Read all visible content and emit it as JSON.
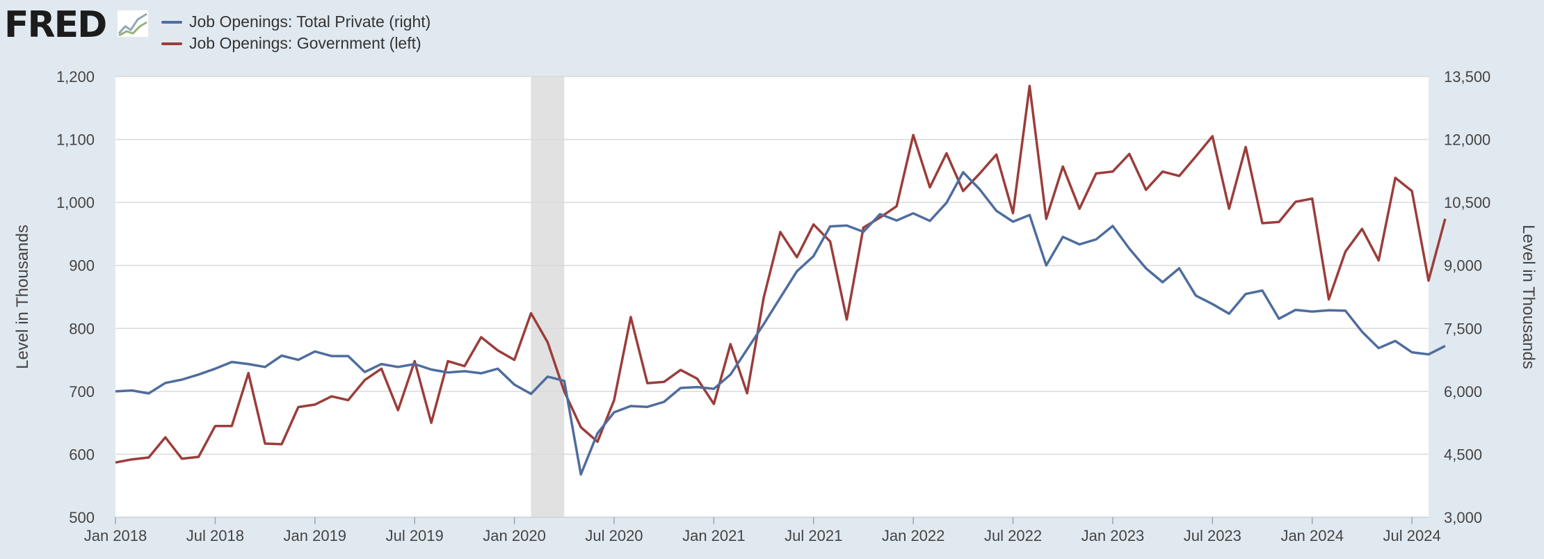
{
  "header": {
    "logo_text": "FRED",
    "logo_icon": "line-chart-icon"
  },
  "colors": {
    "private": "#4e6d9e",
    "government": "#9b3d3a",
    "recession": "#e1e1e1",
    "grid": "#d9d9d9",
    "background": "#e1e9f0"
  },
  "chart_data": {
    "type": "line",
    "grid": true,
    "legend_position": "top-left",
    "recession_band": {
      "start": "2020-02",
      "end": "2020-04"
    },
    "x_ticks": [
      "Jan 2018",
      "Jul 2018",
      "Jan 2019",
      "Jul 2019",
      "Jan 2020",
      "Jul 2020",
      "Jan 2021",
      "Jul 2021",
      "Jan 2022",
      "Jul 2022",
      "Jan 2023",
      "Jul 2023",
      "Jan 2024",
      "Jul 2024"
    ],
    "x_start": "2018-01",
    "x_end": "2024-08",
    "y_left": {
      "label": "Level in Thousands",
      "range": [
        500,
        1200
      ],
      "ticks": [
        "500",
        "600",
        "700",
        "800",
        "900",
        "1,000",
        "1,100",
        "1,200"
      ]
    },
    "y_right": {
      "label": "Level in Thousands",
      "range": [
        3000,
        13500
      ],
      "ticks": [
        "3,000",
        "4,500",
        "6,000",
        "7,500",
        "9,000",
        "10,500",
        "12,000",
        "13,500"
      ]
    },
    "series": [
      {
        "name": "Job Openings: Total Private (right)",
        "axis": "right",
        "color": "#4e6d9e",
        "values": [
          6000,
          6020,
          5950,
          6200,
          6280,
          6400,
          6540,
          6700,
          6650,
          6580,
          6850,
          6750,
          6950,
          6840,
          6840,
          6460,
          6650,
          6580,
          6650,
          6520,
          6450,
          6480,
          6430,
          6540,
          6160,
          5940,
          6350,
          6250,
          4020,
          5000,
          5500,
          5650,
          5630,
          5750,
          6080,
          6100,
          6060,
          6400,
          7000,
          7600,
          8230,
          8860,
          9220,
          9930,
          9950,
          9800,
          10220,
          10070,
          10240,
          10060,
          10490,
          11220,
          10810,
          10300,
          10040,
          10200,
          9000,
          9680,
          9500,
          9620,
          9940,
          9400,
          8930,
          8600,
          8930,
          8280,
          8080,
          7850,
          8320,
          8400,
          7730,
          7940,
          7900,
          7930,
          7920,
          7420,
          7030,
          7200,
          6930,
          6880,
          7080
        ]
      },
      {
        "name": "Job Openings: Government (left)",
        "axis": "left",
        "color": "#9b3d3a",
        "values": [
          587,
          592,
          595,
          627,
          593,
          596,
          645,
          645,
          729,
          617,
          616,
          675,
          679,
          692,
          686,
          718,
          736,
          670,
          748,
          650,
          748,
          740,
          786,
          765,
          750,
          824,
          778,
          700,
          643,
          620,
          686,
          818,
          713,
          715,
          734,
          720,
          680,
          775,
          697,
          849,
          953,
          913,
          965,
          938,
          814,
          960,
          976,
          994,
          1107,
          1024,
          1078,
          1018,
          1046,
          1076,
          983,
          1185,
          974,
          1057,
          990,
          1046,
          1049,
          1077,
          1020,
          1049,
          1042,
          1073,
          1105,
          990,
          1088,
          967,
          969,
          1001,
          1006,
          846,
          922,
          958,
          908,
          1039,
          1018,
          876,
          974
        ]
      }
    ]
  }
}
